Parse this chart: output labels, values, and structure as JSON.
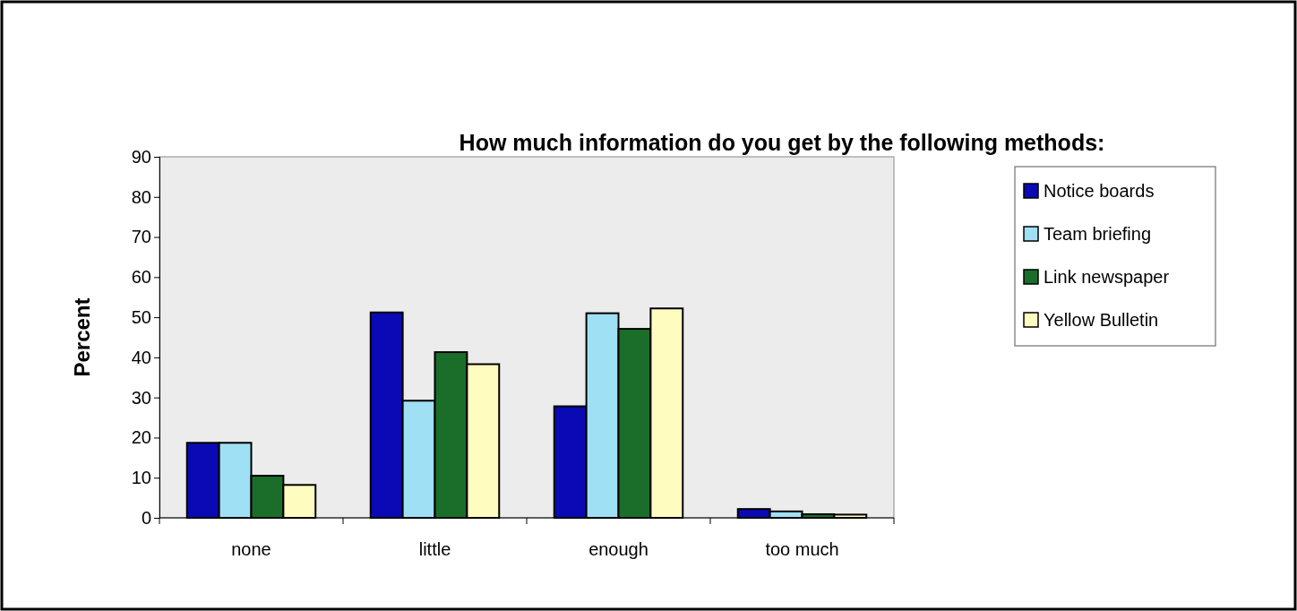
{
  "chart_data": {
    "type": "bar",
    "title": "How much information do you get by the following methods:",
    "ylabel": "Percent",
    "categories": [
      "none",
      "little",
      "enough",
      "too much"
    ],
    "series": [
      {
        "name": "Notice boards",
        "color": "#0a0ab4",
        "values": [
          18.7,
          51.2,
          27.8,
          2.2
        ]
      },
      {
        "name": "Team briefing",
        "color": "#a0e0f4",
        "values": [
          18.7,
          29.2,
          51.0,
          1.6
        ]
      },
      {
        "name": "Link newspaper",
        "color": "#1a6e2a",
        "values": [
          10.5,
          41.3,
          47.1,
          0.9
        ]
      },
      {
        "name": "Yellow  Bulletin",
        "color": "#fffcc0",
        "values": [
          8.2,
          38.3,
          52.2,
          0.8
        ]
      }
    ],
    "ylim": [
      0,
      90
    ],
    "yticks": [
      0,
      10,
      20,
      30,
      40,
      50,
      60,
      70,
      80,
      90
    ],
    "grid": false,
    "legend": "top right"
  }
}
